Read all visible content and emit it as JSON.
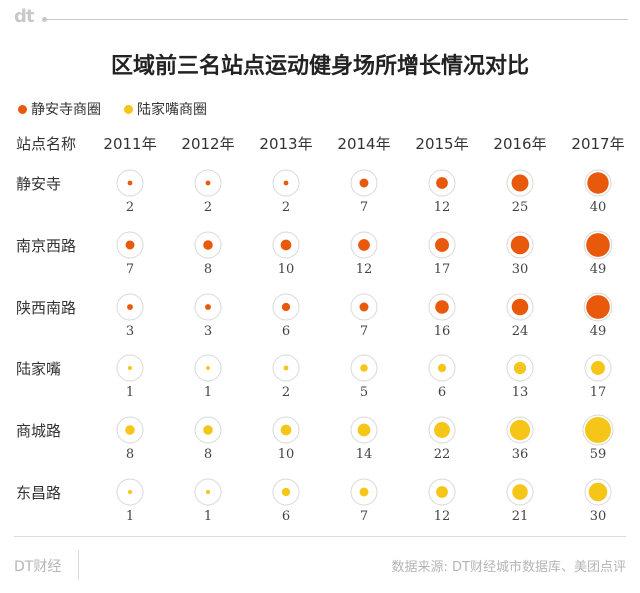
{
  "header": {
    "logo_text": "dt"
  },
  "chart_data": {
    "type": "bubble-grid",
    "title": "区域前三名站点运动健身场所增长情况对比",
    "row_header": "站点名称",
    "categories": [
      "2011年",
      "2012年",
      "2013年",
      "2014年",
      "2015年",
      "2016年",
      "2017年"
    ],
    "legend": [
      {
        "name": "静安寺商圈",
        "color": "#e8590c"
      },
      {
        "name": "陆家嘴商圈",
        "color": "#f5c518"
      }
    ],
    "series": [
      {
        "name": "静安寺",
        "group": 0,
        "values": [
          2,
          2,
          2,
          7,
          12,
          25,
          40
        ]
      },
      {
        "name": "南京西路",
        "group": 0,
        "values": [
          7,
          8,
          10,
          12,
          17,
          30,
          49
        ]
      },
      {
        "name": "陕西南路",
        "group": 0,
        "values": [
          3,
          3,
          6,
          7,
          16,
          24,
          49
        ]
      },
      {
        "name": "陆家嘴",
        "group": 1,
        "values": [
          1,
          1,
          2,
          5,
          6,
          13,
          17
        ]
      },
      {
        "name": "商城路",
        "group": 1,
        "values": [
          8,
          8,
          10,
          14,
          22,
          36,
          59
        ]
      },
      {
        "name": "东昌路",
        "group": 1,
        "values": [
          1,
          1,
          6,
          7,
          12,
          21,
          30
        ]
      }
    ],
    "max_value": 59
  },
  "footer": {
    "brand": "DT财经",
    "source": "数据来源: DT财经城市数据库、美团点评"
  }
}
